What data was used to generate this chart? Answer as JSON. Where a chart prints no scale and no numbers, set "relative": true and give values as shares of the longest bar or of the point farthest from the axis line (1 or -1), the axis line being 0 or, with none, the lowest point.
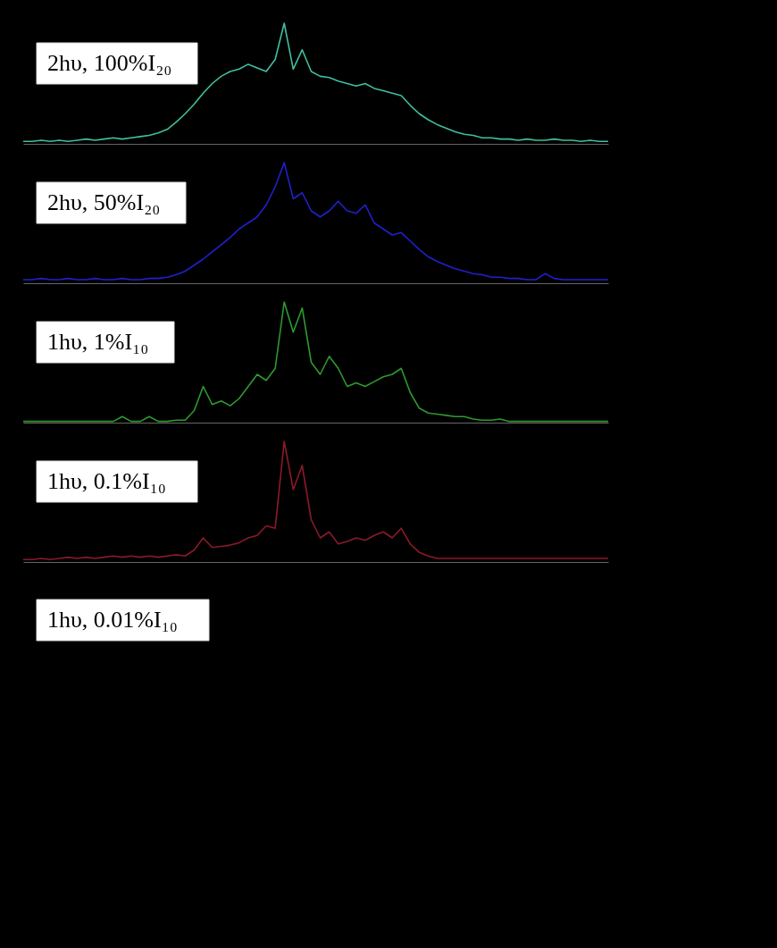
{
  "chart_data": [
    {
      "type": "line",
      "relative": true,
      "tick_labels": false,
      "annotations": [
        "2hυ, 100%I₂₀"
      ],
      "categories": [
        null,
        null,
        null,
        null,
        null,
        null,
        null,
        null,
        null,
        null,
        null,
        null,
        null,
        null,
        null,
        null,
        null,
        null,
        null,
        null,
        null,
        null,
        null,
        null,
        null,
        null,
        null,
        null,
        null,
        null,
        null,
        null,
        null,
        null,
        null,
        null,
        null,
        null,
        null,
        null,
        null,
        null,
        null,
        null,
        null,
        null,
        null,
        null,
        null,
        null,
        null,
        null,
        null,
        null,
        null,
        null,
        null,
        null,
        null,
        null,
        null,
        null,
        null,
        null,
        null,
        null
      ],
      "series": [
        {
          "color": "#3fbf9f",
          "values": [
            0.02,
            0.02,
            0.03,
            0.02,
            0.03,
            0.02,
            0.03,
            0.04,
            0.03,
            0.04,
            0.05,
            0.04,
            0.05,
            0.06,
            0.07,
            0.09,
            0.12,
            0.18,
            0.25,
            0.33,
            0.42,
            0.5,
            0.56,
            0.6,
            0.62,
            0.66,
            0.63,
            0.6,
            0.7,
            1.0,
            0.62,
            0.78,
            0.6,
            0.56,
            0.55,
            0.52,
            0.5,
            0.48,
            0.5,
            0.46,
            0.44,
            0.42,
            0.4,
            0.32,
            0.25,
            0.2,
            0.16,
            0.13,
            0.1,
            0.08,
            0.07,
            0.05,
            0.05,
            0.04,
            0.04,
            0.03,
            0.04,
            0.03,
            0.03,
            0.04,
            0.03,
            0.03,
            0.02,
            0.03,
            0.02,
            0.02
          ]
        }
      ]
    },
    {
      "type": "line",
      "relative": true,
      "tick_labels": false,
      "annotations": [
        "2hυ, 50%I₂₀"
      ],
      "categories": [
        null,
        null,
        null,
        null,
        null,
        null,
        null,
        null,
        null,
        null,
        null,
        null,
        null,
        null,
        null,
        null,
        null,
        null,
        null,
        null,
        null,
        null,
        null,
        null,
        null,
        null,
        null,
        null,
        null,
        null,
        null,
        null,
        null,
        null,
        null,
        null,
        null,
        null,
        null,
        null,
        null,
        null,
        null,
        null,
        null,
        null,
        null,
        null,
        null,
        null,
        null,
        null,
        null,
        null,
        null,
        null,
        null,
        null,
        null,
        null,
        null,
        null,
        null,
        null,
        null,
        null
      ],
      "series": [
        {
          "color": "#2020d0",
          "values": [
            0.03,
            0.03,
            0.04,
            0.03,
            0.03,
            0.04,
            0.03,
            0.03,
            0.04,
            0.03,
            0.03,
            0.04,
            0.03,
            0.03,
            0.04,
            0.04,
            0.05,
            0.07,
            0.1,
            0.15,
            0.2,
            0.26,
            0.32,
            0.38,
            0.45,
            0.5,
            0.55,
            0.65,
            0.8,
            1.0,
            0.7,
            0.75,
            0.6,
            0.55,
            0.6,
            0.68,
            0.6,
            0.58,
            0.65,
            0.5,
            0.45,
            0.4,
            0.42,
            0.35,
            0.28,
            0.22,
            0.18,
            0.15,
            0.12,
            0.1,
            0.08,
            0.07,
            0.05,
            0.05,
            0.04,
            0.04,
            0.03,
            0.03,
            0.08,
            0.04,
            0.03,
            0.03,
            0.03,
            0.03,
            0.03,
            0.03
          ]
        }
      ]
    },
    {
      "type": "line",
      "relative": true,
      "tick_labels": false,
      "annotations": [
        "1hυ, 1%I₁₀"
      ],
      "categories": [
        null,
        null,
        null,
        null,
        null,
        null,
        null,
        null,
        null,
        null,
        null,
        null,
        null,
        null,
        null,
        null,
        null,
        null,
        null,
        null,
        null,
        null,
        null,
        null,
        null,
        null,
        null,
        null,
        null,
        null,
        null,
        null,
        null,
        null,
        null,
        null,
        null,
        null,
        null,
        null,
        null,
        null,
        null,
        null,
        null,
        null,
        null,
        null,
        null,
        null,
        null,
        null,
        null,
        null,
        null,
        null,
        null,
        null,
        null,
        null,
        null,
        null,
        null,
        null,
        null,
        null
      ],
      "series": [
        {
          "color": "#2e9a2e",
          "values": [
            0.01,
            0.01,
            0.01,
            0.01,
            0.01,
            0.01,
            0.01,
            0.01,
            0.01,
            0.01,
            0.01,
            0.05,
            0.01,
            0.01,
            0.05,
            0.01,
            0.01,
            0.02,
            0.02,
            0.1,
            0.3,
            0.15,
            0.18,
            0.14,
            0.2,
            0.3,
            0.4,
            0.35,
            0.45,
            1.0,
            0.75,
            0.95,
            0.5,
            0.4,
            0.55,
            0.45,
            0.3,
            0.33,
            0.3,
            0.34,
            0.38,
            0.4,
            0.45,
            0.25,
            0.12,
            0.08,
            0.07,
            0.06,
            0.05,
            0.05,
            0.03,
            0.02,
            0.02,
            0.03,
            0.01,
            0.01,
            0.01,
            0.01,
            0.01,
            0.01,
            0.01,
            0.01,
            0.01,
            0.01,
            0.01,
            0.01
          ]
        }
      ]
    },
    {
      "type": "line",
      "relative": true,
      "tick_labels": false,
      "annotations": [
        "1hυ, 0.1%I₁₀"
      ],
      "categories": [
        null,
        null,
        null,
        null,
        null,
        null,
        null,
        null,
        null,
        null,
        null,
        null,
        null,
        null,
        null,
        null,
        null,
        null,
        null,
        null,
        null,
        null,
        null,
        null,
        null,
        null,
        null,
        null,
        null,
        null,
        null,
        null,
        null,
        null,
        null,
        null,
        null,
        null,
        null,
        null,
        null,
        null,
        null,
        null,
        null,
        null,
        null,
        null,
        null,
        null,
        null,
        null,
        null,
        null,
        null,
        null,
        null,
        null,
        null,
        null,
        null,
        null,
        null,
        null,
        null,
        null
      ],
      "series": [
        {
          "color": "#8b1a2a",
          "values": [
            0.02,
            0.02,
            0.03,
            0.02,
            0.03,
            0.04,
            0.03,
            0.04,
            0.03,
            0.04,
            0.05,
            0.04,
            0.05,
            0.04,
            0.05,
            0.04,
            0.05,
            0.06,
            0.05,
            0.1,
            0.2,
            0.12,
            0.13,
            0.14,
            0.16,
            0.2,
            0.22,
            0.3,
            0.28,
            1.0,
            0.6,
            0.8,
            0.35,
            0.2,
            0.25,
            0.15,
            0.17,
            0.2,
            0.18,
            0.22,
            0.25,
            0.2,
            0.28,
            0.15,
            0.08,
            0.05,
            0.03,
            0.03,
            0.03,
            0.03,
            0.03,
            0.03,
            0.03,
            0.03,
            0.03,
            0.03,
            0.03,
            0.03,
            0.03,
            0.03,
            0.03,
            0.03,
            0.03,
            0.03,
            0.03,
            0.03
          ]
        }
      ]
    },
    {
      "type": "other",
      "annotations": [
        "1hυ, 0.01%I₁₀"
      ]
    }
  ]
}
